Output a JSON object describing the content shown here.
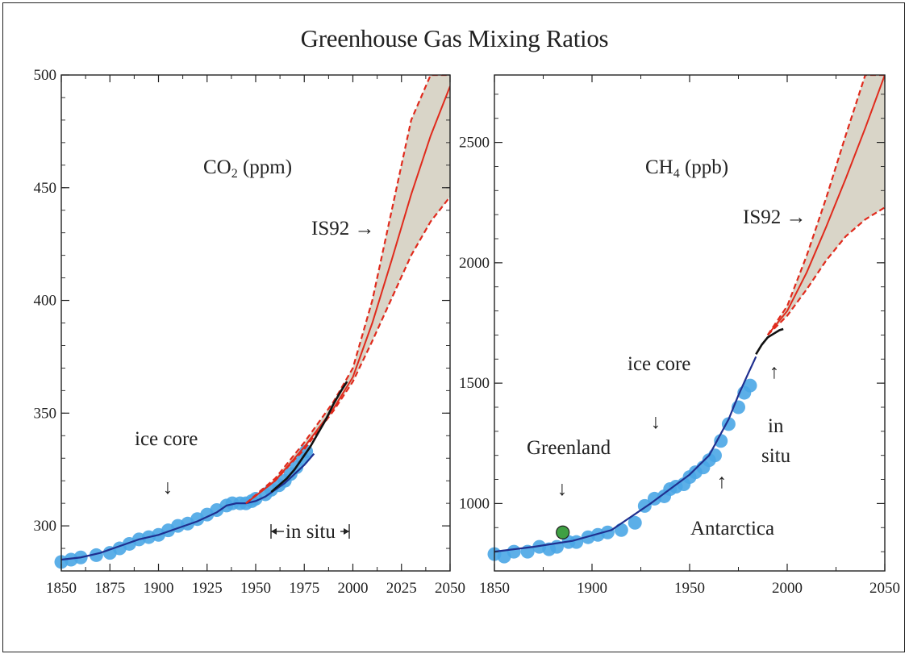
{
  "title": "Greenhouse Gas Mixing Ratios",
  "colors": {
    "ice_core": "#4aa6e6",
    "ice_core_line": "#1f2f8f",
    "in_situ": "#111111",
    "projection": "#e02a1c",
    "uncertainty_fill": "#d9d5c8",
    "greenland_point": "#3fa043"
  },
  "chart_data": [
    {
      "type": "line",
      "title_main": "CO",
      "title_sub": "2",
      "title_unit": " (ppm)",
      "xlim": [
        1850,
        2050
      ],
      "ylim": [
        280,
        500
      ],
      "xticks": [
        1850,
        1875,
        1900,
        1925,
        1950,
        1975,
        2000,
        2025,
        2050
      ],
      "yticks": [
        300,
        350,
        400,
        450,
        500
      ],
      "annotations": {
        "ice_core": "ice core",
        "in_situ": "in situ",
        "projection": "IS92 →",
        "arrow_down": "↓"
      },
      "series": [
        {
          "kind": "ice_core_points",
          "x": [
            1850,
            1855,
            1860,
            1868,
            1875,
            1880,
            1885,
            1890,
            1895,
            1900,
            1905,
            1910,
            1915,
            1920,
            1925,
            1930,
            1935,
            1938,
            1942,
            1945,
            1948,
            1950,
            1955,
            1958,
            1962,
            1965,
            1968,
            1971,
            1974,
            1976
          ],
          "y": [
            284,
            285,
            286,
            287,
            288,
            290,
            292,
            294,
            295,
            296,
            298,
            300,
            301,
            303,
            305,
            307,
            309,
            310,
            310,
            310,
            311,
            312,
            314,
            316,
            318,
            320,
            323,
            326,
            330,
            333
          ]
        },
        {
          "kind": "ice_core_fit",
          "x": [
            1850,
            1860,
            1870,
            1880,
            1890,
            1900,
            1910,
            1920,
            1930,
            1935,
            1940,
            1945,
            1950,
            1955,
            1960,
            1965,
            1970,
            1975,
            1980
          ],
          "y": [
            285,
            286,
            288,
            291,
            294,
            296,
            299,
            302,
            306,
            309,
            310,
            310,
            311,
            313,
            316,
            319,
            323,
            327,
            332
          ]
        },
        {
          "kind": "in_situ",
          "x": [
            1958,
            1962,
            1966,
            1970,
            1974,
            1978,
            1982,
            1986,
            1990,
            1994,
            1997
          ],
          "y": [
            315,
            318,
            321,
            325,
            330,
            335,
            341,
            347,
            354,
            360,
            364
          ]
        },
        {
          "kind": "projection",
          "x": [
            1945,
            1960,
            1975,
            1990,
            2000,
            2010,
            2020,
            2030,
            2040,
            2050
          ],
          "y": [
            310,
            320,
            335,
            352,
            366,
            390,
            418,
            447,
            473,
            495
          ]
        },
        {
          "kind": "projection_upper",
          "x": [
            1945,
            1960,
            1975,
            1990,
            2000,
            2010,
            2020,
            2030,
            2040,
            2050
          ],
          "y": [
            310,
            321,
            337,
            355,
            370,
            400,
            440,
            480,
            500,
            500
          ]
        },
        {
          "kind": "projection_lower",
          "x": [
            1945,
            1960,
            1975,
            1990,
            2000,
            2010,
            2020,
            2030,
            2040,
            2050
          ],
          "y": [
            310,
            320,
            334,
            351,
            364,
            382,
            401,
            420,
            435,
            446
          ]
        }
      ]
    },
    {
      "type": "line",
      "title_main": "CH",
      "title_sub": "4",
      "title_unit": " (ppb)",
      "xlim": [
        1850,
        2050
      ],
      "ylim": [
        720,
        2780
      ],
      "xticks": [
        1850,
        1900,
        1950,
        2000,
        2050
      ],
      "yticks": [
        1000,
        1500,
        2000,
        2500
      ],
      "annotations": {
        "ice_core": "ice core",
        "greenland": "Greenland",
        "antarctica": "Antarctica",
        "in_situ_1": "in",
        "in_situ_2": "situ",
        "projection": "IS92 →",
        "arrow_down": "↓",
        "arrow_up": "↑"
      },
      "greenland_point": {
        "x": 1885,
        "y": 880
      },
      "series": [
        {
          "kind": "ice_core_points",
          "x": [
            1850,
            1855,
            1860,
            1867,
            1873,
            1878,
            1882,
            1888,
            1892,
            1898,
            1903,
            1908,
            1915,
            1922,
            1927,
            1932,
            1937,
            1940,
            1943,
            1947,
            1950,
            1953,
            1957,
            1960,
            1963,
            1966,
            1970,
            1975,
            1978,
            1981
          ],
          "y": [
            790,
            780,
            800,
            800,
            820,
            810,
            820,
            840,
            840,
            860,
            870,
            880,
            890,
            920,
            990,
            1020,
            1030,
            1060,
            1070,
            1080,
            1110,
            1130,
            1150,
            1180,
            1200,
            1260,
            1330,
            1400,
            1460,
            1490
          ]
        },
        {
          "kind": "ice_core_fit",
          "x": [
            1850,
            1870,
            1890,
            1910,
            1930,
            1950,
            1960,
            1970,
            1975,
            1980,
            1984
          ],
          "y": [
            800,
            820,
            845,
            890,
            1000,
            1120,
            1200,
            1350,
            1450,
            1540,
            1610
          ]
        },
        {
          "kind": "in_situ",
          "x": [
            1984,
            1987,
            1990,
            1993,
            1996,
            1998
          ],
          "y": [
            1620,
            1660,
            1690,
            1705,
            1720,
            1725
          ]
        },
        {
          "kind": "projection",
          "x": [
            1990,
            2000,
            2010,
            2020,
            2030,
            2040,
            2050
          ],
          "y": [
            1700,
            1800,
            1960,
            2150,
            2350,
            2560,
            2780
          ]
        },
        {
          "kind": "projection_upper",
          "x": [
            1990,
            2000,
            2010,
            2020,
            2030,
            2040,
            2050
          ],
          "y": [
            1700,
            1820,
            2030,
            2270,
            2530,
            2780,
            2780
          ]
        },
        {
          "kind": "projection_lower",
          "x": [
            1990,
            2000,
            2010,
            2020,
            2030,
            2040,
            2050
          ],
          "y": [
            1700,
            1780,
            1890,
            2010,
            2110,
            2180,
            2230
          ]
        }
      ]
    }
  ]
}
